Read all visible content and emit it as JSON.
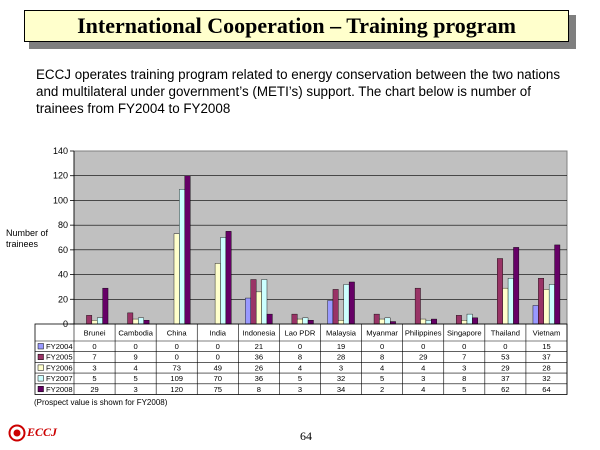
{
  "slide": {
    "title": "International Cooperation – Training program",
    "intro": "ECCJ operates training program related to energy conservation between the two nations and multilateral under government’s (METI’s) support. The chart below is number of trainees from FY2004 to FY2008",
    "y_axis_label": "Number of trainees",
    "note": "(Prospect value is shown for FY2008)",
    "logo_text": "ECCJ",
    "page_number": "64"
  },
  "chart_data": {
    "type": "bar",
    "categories": [
      "Brunei",
      "Cambodia",
      "China",
      "India",
      "Indonesia",
      "Lao PDR",
      "Malaysia",
      "Myanmar",
      "Philippines",
      "Singapore",
      "Thailand",
      "Vietnam"
    ],
    "series": [
      {
        "name": "FY2004",
        "color": "#9999ff",
        "values": [
          0,
          0,
          0,
          0,
          21,
          0,
          19,
          0,
          0,
          0,
          0,
          15
        ]
      },
      {
        "name": "FY2005",
        "color": "#993366",
        "values": [
          7,
          9,
          0,
          0,
          36,
          8,
          28,
          8,
          29,
          7,
          53,
          37
        ]
      },
      {
        "name": "FY2006",
        "color": "#ffffcc",
        "values": [
          3,
          4,
          73,
          49,
          26,
          4,
          3,
          4,
          4,
          3,
          29,
          28
        ]
      },
      {
        "name": "FY2007",
        "color": "#ccffff",
        "values": [
          5,
          5,
          109,
          70,
          36,
          5,
          32,
          5,
          3,
          8,
          37,
          32
        ]
      },
      {
        "name": "FY2008",
        "color": "#660066",
        "values": [
          29,
          3,
          120,
          75,
          8,
          3,
          34,
          2,
          4,
          5,
          62,
          64
        ]
      }
    ],
    "ylim": [
      0,
      140
    ],
    "yticks": [
      "0",
      "20",
      "40",
      "60",
      "80",
      "100",
      "120",
      "140"
    ],
    "plot_background": "#c0c0c0",
    "grid": true,
    "legend": "data-table"
  }
}
